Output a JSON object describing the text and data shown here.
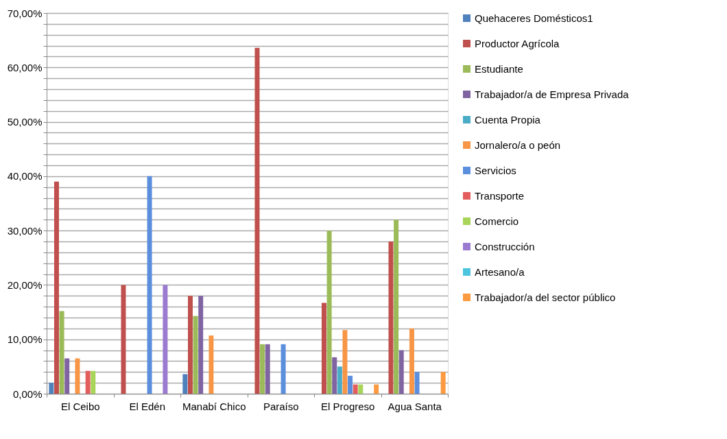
{
  "chart_data": {
    "type": "bar",
    "categories": [
      "El Ceibo",
      "El Edén",
      "Manabí Chico",
      "Paraíso",
      "El Progreso",
      "Agua Santa"
    ],
    "series": [
      {
        "name": "Quehaceres Domésticos1",
        "color": "#4f81bd",
        "values": [
          2,
          null,
          3.6,
          null,
          null,
          null
        ]
      },
      {
        "name": "Productor Agrícola",
        "color": "#c0504d",
        "values": [
          39,
          20,
          18,
          63.6,
          16.7,
          28
        ]
      },
      {
        "name": "Estudiante",
        "color": "#9bbb59",
        "values": [
          15.2,
          null,
          14.3,
          9.1,
          30,
          32
        ]
      },
      {
        "name": "Trabajador/a de Empresa Privada",
        "color": "#8064a2",
        "values": [
          6.5,
          null,
          18,
          9.1,
          6.7,
          8
        ]
      },
      {
        "name": "Cuenta Propia",
        "color": "#4bacc6",
        "values": [
          null,
          null,
          null,
          null,
          5,
          null
        ]
      },
      {
        "name": "Jornalero/a o peón",
        "color": "#f79646",
        "values": [
          6.5,
          null,
          10.7,
          null,
          11.7,
          12
        ]
      },
      {
        "name": "Servicios",
        "color": "#5b8fde",
        "values": [
          null,
          40,
          null,
          9.1,
          3.3,
          4
        ]
      },
      {
        "name": "Transporte",
        "color": "#e35d5d",
        "values": [
          4.2,
          null,
          null,
          null,
          1.7,
          null
        ]
      },
      {
        "name": "Comercio",
        "color": "#a9d45a",
        "values": [
          4.2,
          null,
          null,
          null,
          1.7,
          null
        ]
      },
      {
        "name": "Construcción",
        "color": "#9a7bcf",
        "values": [
          null,
          20,
          null,
          null,
          null,
          null
        ]
      },
      {
        "name": "Artesano/a",
        "color": "#4cc4e0",
        "values": [
          null,
          null,
          null,
          null,
          null,
          null
        ]
      },
      {
        "name": "Trabajador/a del sector público",
        "color": "#fb9a40",
        "values": [
          null,
          null,
          null,
          null,
          1.7,
          4
        ]
      }
    ],
    "ylim": [
      0,
      70
    ],
    "yticks": [
      {
        "value": 0,
        "label": "0,00%"
      },
      {
        "value": 2,
        "label": null
      },
      {
        "value": 4,
        "label": null
      },
      {
        "value": 6,
        "label": null
      },
      {
        "value": 8,
        "label": null
      },
      {
        "value": 10,
        "label": "10,00%"
      },
      {
        "value": 12,
        "label": null
      },
      {
        "value": 14,
        "label": null
      },
      {
        "value": 16,
        "label": null
      },
      {
        "value": 18,
        "label": null
      },
      {
        "value": 20,
        "label": "20,00%"
      },
      {
        "value": 22,
        "label": null
      },
      {
        "value": 24,
        "label": null
      },
      {
        "value": 26,
        "label": null
      },
      {
        "value": 28,
        "label": null
      },
      {
        "value": 30,
        "label": "30,00%"
      },
      {
        "value": 32,
        "label": null
      },
      {
        "value": 34,
        "label": null
      },
      {
        "value": 36,
        "label": null
      },
      {
        "value": 38,
        "label": null
      },
      {
        "value": 40,
        "label": "40,00%"
      },
      {
        "value": 42,
        "label": null
      },
      {
        "value": 44,
        "label": null
      },
      {
        "value": 46,
        "label": null
      },
      {
        "value": 48,
        "label": null
      },
      {
        "value": 50,
        "label": "50,00%"
      },
      {
        "value": 52,
        "label": null
      },
      {
        "value": 54,
        "label": null
      },
      {
        "value": 56,
        "label": null
      },
      {
        "value": 58,
        "label": null
      },
      {
        "value": 60,
        "label": "60,00%"
      },
      {
        "value": 62,
        "label": null
      },
      {
        "value": 64,
        "label": null
      },
      {
        "value": 66,
        "label": null
      },
      {
        "value": 68,
        "label": null
      },
      {
        "value": 70,
        "label": "70,00%"
      }
    ],
    "grid": "y",
    "legend": "right"
  }
}
